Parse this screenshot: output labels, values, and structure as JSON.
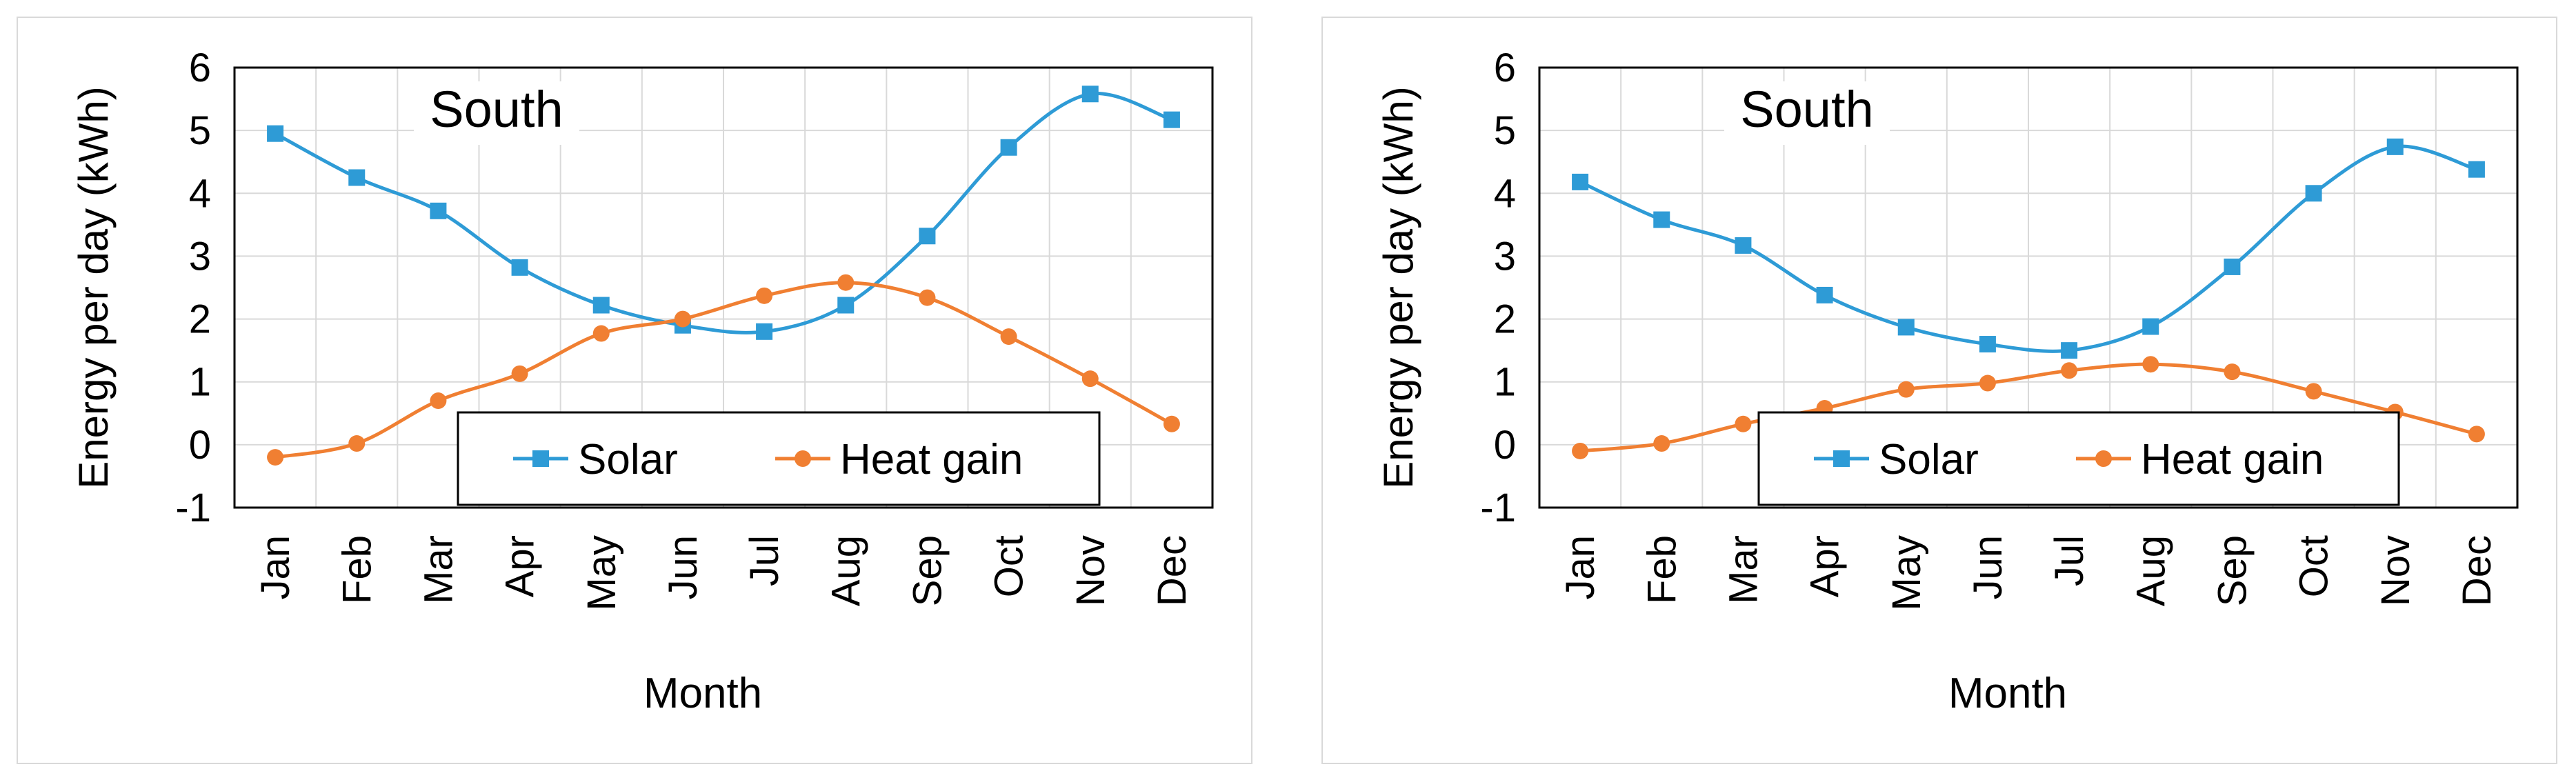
{
  "chart_data": [
    {
      "type": "line",
      "title": "South",
      "xlabel": "Month",
      "ylabel": "Energy per day (kWh)",
      "categories": [
        "Jan",
        "Feb",
        "Mar",
        "Apr",
        "May",
        "Jun",
        "Jul",
        "Aug",
        "Sep",
        "Oct",
        "Nov",
        "Dec"
      ],
      "ylim": [
        -1,
        6
      ],
      "yticks": [
        "-1",
        "0",
        "1",
        "2",
        "3",
        "4",
        "5",
        "6"
      ],
      "grid": true,
      "legend_position": "bottom-center",
      "series": [
        {
          "name": "Solar",
          "marker": "square",
          "color": "#2e9bd6",
          "values": [
            4.95,
            4.25,
            3.72,
            2.82,
            2.22,
            1.9,
            1.8,
            2.22,
            3.32,
            4.73,
            5.58,
            5.17
          ]
        },
        {
          "name": "Heat gain",
          "marker": "circle",
          "color": "#f07f32",
          "values": [
            -0.2,
            0.02,
            0.7,
            1.13,
            1.77,
            2.0,
            2.37,
            2.58,
            2.34,
            1.72,
            1.05,
            0.33
          ]
        }
      ]
    },
    {
      "type": "line",
      "title": "South",
      "xlabel": "Month",
      "ylabel": "Energy per day (kWh)",
      "categories": [
        "Jan",
        "Feb",
        "Mar",
        "Apr",
        "May",
        "Jun",
        "Jul",
        "Aug",
        "Sep",
        "Oct",
        "Nov",
        "Dec"
      ],
      "ylim": [
        -1,
        6
      ],
      "yticks": [
        "-1",
        "0",
        "1",
        "2",
        "3",
        "4",
        "5",
        "6"
      ],
      "grid": true,
      "legend_position": "bottom-center",
      "series": [
        {
          "name": "Solar",
          "marker": "square",
          "color": "#2e9bd6",
          "values": [
            4.18,
            3.58,
            3.17,
            2.38,
            1.87,
            1.6,
            1.5,
            1.88,
            2.83,
            4.0,
            4.74,
            4.38
          ]
        },
        {
          "name": "Heat gain",
          "marker": "circle",
          "color": "#f07f32",
          "values": [
            -0.1,
            0.02,
            0.33,
            0.58,
            0.88,
            0.98,
            1.18,
            1.28,
            1.16,
            0.85,
            0.52,
            0.17
          ]
        }
      ]
    }
  ]
}
